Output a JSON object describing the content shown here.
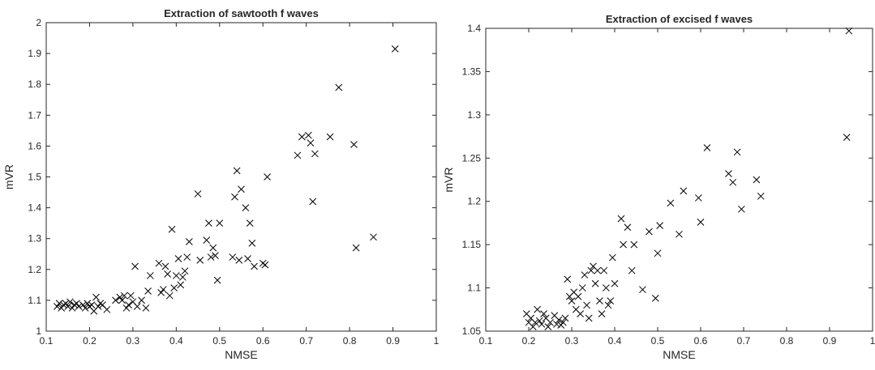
{
  "chart_data": [
    {
      "type": "scatter",
      "title": "Extraction of sawtooth f waves",
      "xlabel": "NMSE",
      "ylabel": "mVR",
      "xlim": [
        0.1,
        1
      ],
      "ylim": [
        1,
        2
      ],
      "xticks": [
        "0.1",
        "0.2",
        "0.3",
        "0.4",
        "0.5",
        "0.6",
        "0.7",
        "0.8",
        "0.9",
        "1"
      ],
      "yticks": [
        "1",
        "1.1",
        "1.2",
        "1.3",
        "1.4",
        "1.5",
        "1.6",
        "1.7",
        "1.8",
        "1.9",
        "2"
      ],
      "marker": "x",
      "grid": false,
      "points": [
        [
          0.125,
          1.08
        ],
        [
          0.13,
          1.09
        ],
        [
          0.135,
          1.075
        ],
        [
          0.14,
          1.085
        ],
        [
          0.145,
          1.09
        ],
        [
          0.15,
          1.08
        ],
        [
          0.155,
          1.095
        ],
        [
          0.16,
          1.075
        ],
        [
          0.165,
          1.085
        ],
        [
          0.17,
          1.09
        ],
        [
          0.175,
          1.08
        ],
        [
          0.185,
          1.085
        ],
        [
          0.19,
          1.075
        ],
        [
          0.195,
          1.09
        ],
        [
          0.2,
          1.08
        ],
        [
          0.205,
          1.085
        ],
        [
          0.21,
          1.065
        ],
        [
          0.215,
          1.11
        ],
        [
          0.22,
          1.08
        ],
        [
          0.225,
          1.09
        ],
        [
          0.23,
          1.085
        ],
        [
          0.24,
          1.07
        ],
        [
          0.26,
          1.1
        ],
        [
          0.27,
          1.11
        ],
        [
          0.275,
          1.1
        ],
        [
          0.28,
          1.115
        ],
        [
          0.285,
          1.075
        ],
        [
          0.29,
          1.085
        ],
        [
          0.295,
          1.115
        ],
        [
          0.3,
          1.095
        ],
        [
          0.305,
          1.21
        ],
        [
          0.31,
          1.08
        ],
        [
          0.32,
          1.1
        ],
        [
          0.33,
          1.075
        ],
        [
          0.335,
          1.13
        ],
        [
          0.34,
          1.18
        ],
        [
          0.36,
          1.22
        ],
        [
          0.365,
          1.125
        ],
        [
          0.37,
          1.135
        ],
        [
          0.375,
          1.21
        ],
        [
          0.38,
          1.185
        ],
        [
          0.385,
          1.115
        ],
        [
          0.39,
          1.33
        ],
        [
          0.395,
          1.14
        ],
        [
          0.4,
          1.18
        ],
        [
          0.405,
          1.235
        ],
        [
          0.41,
          1.15
        ],
        [
          0.415,
          1.175
        ],
        [
          0.42,
          1.195
        ],
        [
          0.425,
          1.24
        ],
        [
          0.43,
          1.29
        ],
        [
          0.45,
          1.445
        ],
        [
          0.455,
          1.23
        ],
        [
          0.47,
          1.295
        ],
        [
          0.475,
          1.35
        ],
        [
          0.48,
          1.24
        ],
        [
          0.485,
          1.27
        ],
        [
          0.49,
          1.245
        ],
        [
          0.495,
          1.165
        ],
        [
          0.5,
          1.35
        ],
        [
          0.53,
          1.24
        ],
        [
          0.535,
          1.435
        ],
        [
          0.54,
          1.52
        ],
        [
          0.545,
          1.23
        ],
        [
          0.55,
          1.46
        ],
        [
          0.56,
          1.4
        ],
        [
          0.565,
          1.235
        ],
        [
          0.57,
          1.35
        ],
        [
          0.575,
          1.285
        ],
        [
          0.58,
          1.21
        ],
        [
          0.6,
          1.22
        ],
        [
          0.605,
          1.215
        ],
        [
          0.61,
          1.5
        ],
        [
          0.68,
          1.57
        ],
        [
          0.69,
          1.63
        ],
        [
          0.705,
          1.635
        ],
        [
          0.71,
          1.61
        ],
        [
          0.715,
          1.42
        ],
        [
          0.72,
          1.575
        ],
        [
          0.755,
          1.63
        ],
        [
          0.775,
          1.79
        ],
        [
          0.81,
          1.605
        ],
        [
          0.815,
          1.27
        ],
        [
          0.855,
          1.305
        ],
        [
          0.905,
          1.915
        ]
      ]
    },
    {
      "type": "scatter",
      "title": "Extraction of excised f waves",
      "xlabel": "NMSE",
      "ylabel": "mVR",
      "xlim": [
        0.1,
        1
      ],
      "ylim": [
        1.05,
        1.4
      ],
      "xticks": [
        "0.1",
        "0.2",
        "0.3",
        "0.4",
        "0.5",
        "0.6",
        "0.7",
        "0.8",
        "0.9",
        "1"
      ],
      "yticks": [
        "1.05",
        "1.1",
        "1.15",
        "1.2",
        "1.25",
        "1.3",
        "1.35",
        "1.4"
      ],
      "marker": "x",
      "grid": false,
      "points": [
        [
          0.195,
          1.07
        ],
        [
          0.2,
          1.06
        ],
        [
          0.205,
          1.065
        ],
        [
          0.21,
          1.055
        ],
        [
          0.215,
          1.06
        ],
        [
          0.22,
          1.075
        ],
        [
          0.225,
          1.062
        ],
        [
          0.23,
          1.058
        ],
        [
          0.235,
          1.07
        ],
        [
          0.24,
          1.065
        ],
        [
          0.245,
          1.055
        ],
        [
          0.25,
          1.06
        ],
        [
          0.26,
          1.068
        ],
        [
          0.265,
          1.058
        ],
        [
          0.27,
          1.063
        ],
        [
          0.275,
          1.057
        ],
        [
          0.28,
          1.06
        ],
        [
          0.285,
          1.065
        ],
        [
          0.29,
          1.11
        ],
        [
          0.295,
          1.09
        ],
        [
          0.3,
          1.085
        ],
        [
          0.305,
          1.095
        ],
        [
          0.31,
          1.075
        ],
        [
          0.315,
          1.09
        ],
        [
          0.32,
          1.07
        ],
        [
          0.325,
          1.1
        ],
        [
          0.33,
          1.115
        ],
        [
          0.335,
          1.08
        ],
        [
          0.34,
          1.065
        ],
        [
          0.345,
          1.12
        ],
        [
          0.35,
          1.125
        ],
        [
          0.355,
          1.105
        ],
        [
          0.36,
          1.12
        ],
        [
          0.365,
          1.085
        ],
        [
          0.37,
          1.07
        ],
        [
          0.375,
          1.12
        ],
        [
          0.38,
          1.1
        ],
        [
          0.385,
          1.08
        ],
        [
          0.39,
          1.085
        ],
        [
          0.395,
          1.135
        ],
        [
          0.4,
          1.105
        ],
        [
          0.415,
          1.18
        ],
        [
          0.42,
          1.15
        ],
        [
          0.43,
          1.17
        ],
        [
          0.44,
          1.12
        ],
        [
          0.445,
          1.15
        ],
        [
          0.465,
          1.098
        ],
        [
          0.48,
          1.165
        ],
        [
          0.495,
          1.088
        ],
        [
          0.5,
          1.14
        ],
        [
          0.505,
          1.172
        ],
        [
          0.53,
          1.198
        ],
        [
          0.55,
          1.162
        ],
        [
          0.56,
          1.212
        ],
        [
          0.595,
          1.204
        ],
        [
          0.6,
          1.176
        ],
        [
          0.615,
          1.262
        ],
        [
          0.665,
          1.232
        ],
        [
          0.675,
          1.222
        ],
        [
          0.685,
          1.257
        ],
        [
          0.695,
          1.191
        ],
        [
          0.73,
          1.225
        ],
        [
          0.74,
          1.206
        ],
        [
          0.94,
          1.274
        ],
        [
          0.945,
          1.397
        ]
      ]
    }
  ]
}
